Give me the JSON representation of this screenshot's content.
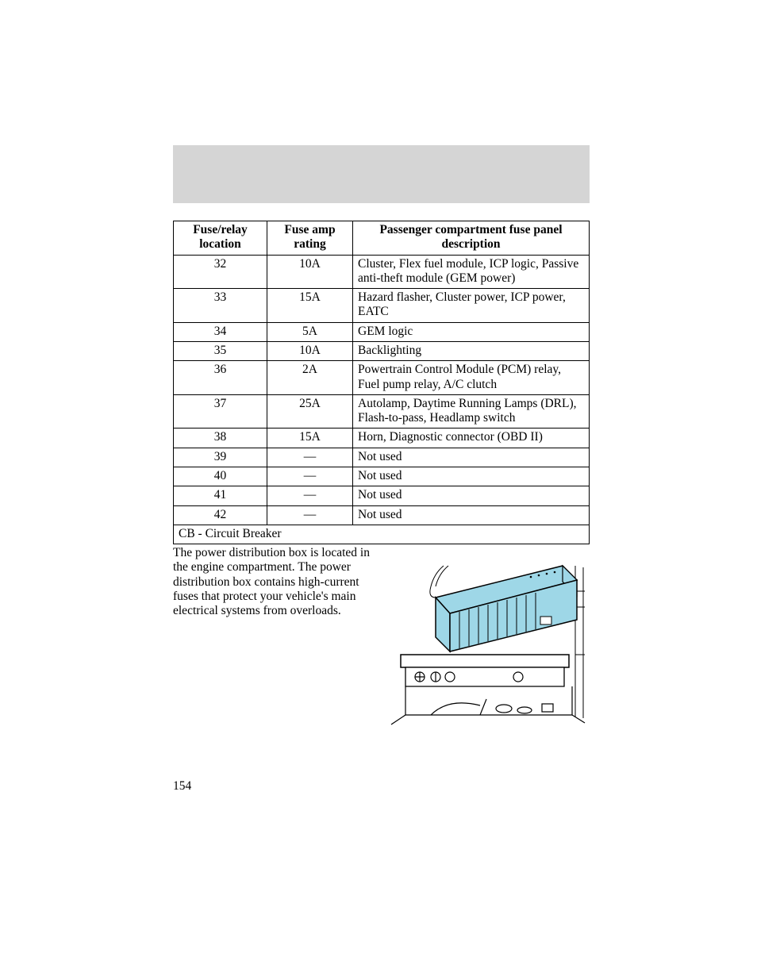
{
  "banner": {
    "background_color": "#d5d5d5"
  },
  "table": {
    "headers": {
      "col1_line1": "Fuse/relay",
      "col1_line2": "location",
      "col2_line1": "Fuse amp",
      "col2_line2": "rating",
      "col3_line1": "Passenger compartment fuse panel",
      "col3_line2": "description"
    },
    "rows": [
      {
        "loc": "32",
        "amp": "10A",
        "desc": "Cluster, Flex fuel module, ICP logic, Passive anti-theft module (GEM power)"
      },
      {
        "loc": "33",
        "amp": "15A",
        "desc": "Hazard flasher, Cluster power, ICP power, EATC"
      },
      {
        "loc": "34",
        "amp": "5A",
        "desc": "GEM logic"
      },
      {
        "loc": "35",
        "amp": "10A",
        "desc": "Backlighting"
      },
      {
        "loc": "36",
        "amp": "2A",
        "desc": "Powertrain Control Module (PCM) relay, Fuel pump relay, A/C clutch"
      },
      {
        "loc": "37",
        "amp": "25A",
        "desc": "Autolamp, Daytime Running Lamps (DRL), Flash-to-pass, Headlamp switch"
      },
      {
        "loc": "38",
        "amp": "15A",
        "desc": "Horn, Diagnostic connector (OBD II)"
      },
      {
        "loc": "39",
        "amp": "—",
        "desc": "Not used"
      },
      {
        "loc": "40",
        "amp": "—",
        "desc": "Not used"
      },
      {
        "loc": "41",
        "amp": "—",
        "desc": "Not used"
      },
      {
        "loc": "42",
        "amp": "—",
        "desc": "Not used"
      }
    ],
    "footer": "CB - Circuit Breaker",
    "border_color": "#000000"
  },
  "paragraph": "The power distribution box is located in the engine compartment. The power distribution box contains high-current fuses that protect your vehicle's main electrical systems from overloads.",
  "page_number": "154",
  "diagram": {
    "highlight_color": "#9ed7e7",
    "stroke_color": "#000000",
    "background_color": "#ffffff"
  }
}
